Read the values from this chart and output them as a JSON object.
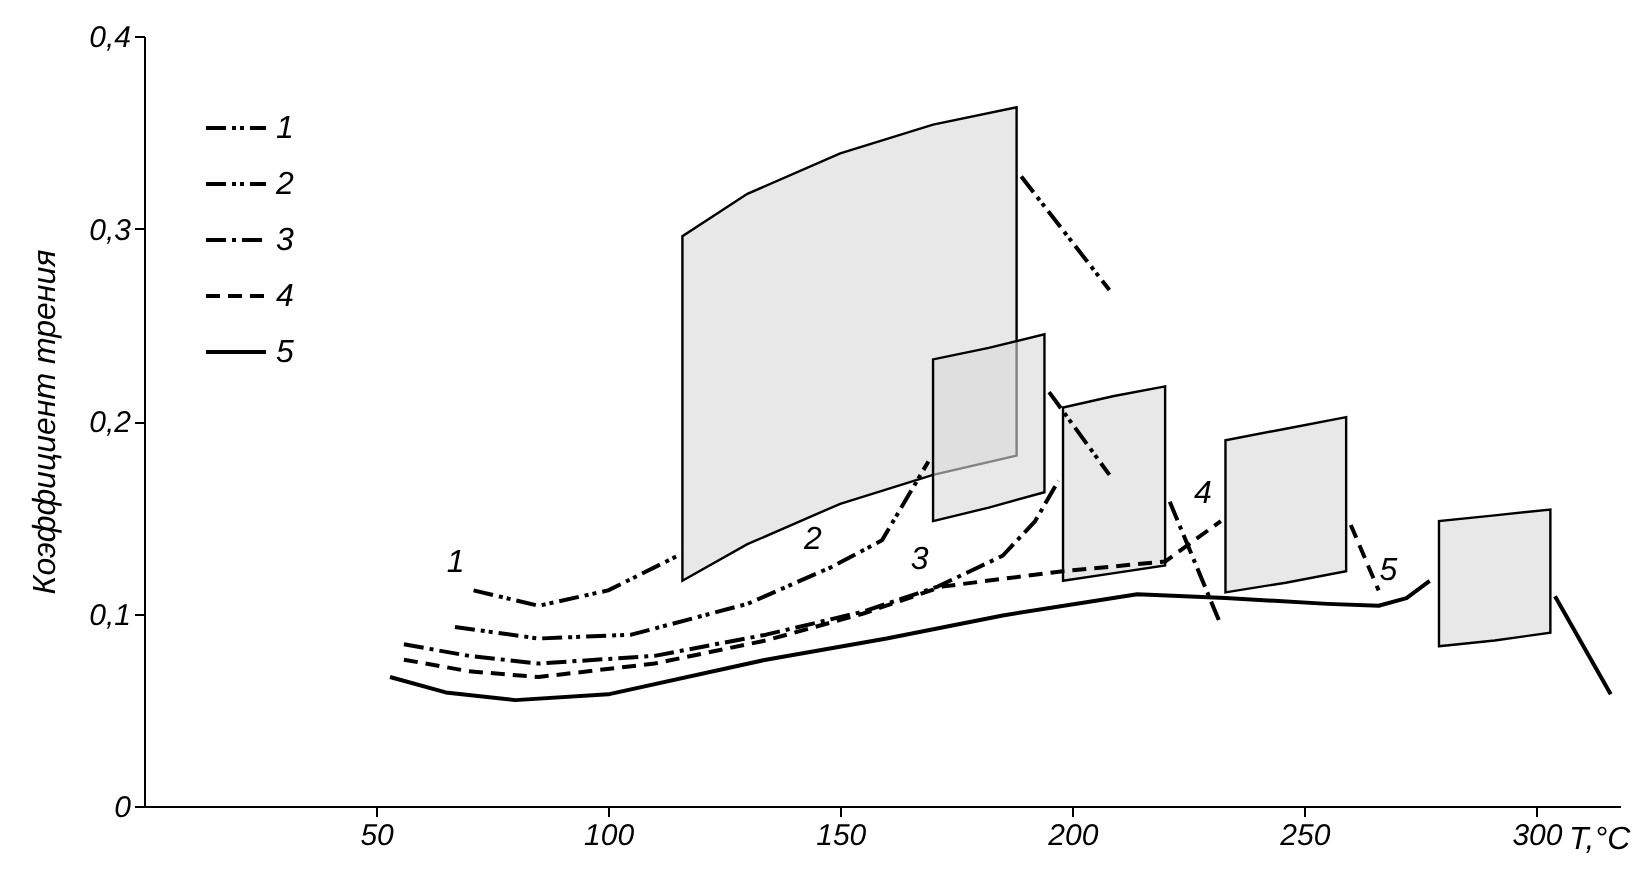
{
  "chart_data": {
    "type": "line",
    "xlabel": "T,°C",
    "ylabel": "Коэффициент трения",
    "xlim": [
      0,
      318
    ],
    "ylim": [
      0,
      0.4
    ],
    "xticks": [
      50,
      100,
      150,
      200,
      250,
      300
    ],
    "yticks": [
      {
        "value": 0,
        "label": "0"
      },
      {
        "value": 0.1,
        "label": "0,1"
      },
      {
        "value": 0.2,
        "label": "0,2"
      },
      {
        "value": 0.3,
        "label": "0,3"
      },
      {
        "value": 0.4,
        "label": "0,4"
      }
    ],
    "grid": false,
    "legend": "top left",
    "marker": "none",
    "series": [
      {
        "name": "1",
        "color": "#000000",
        "line_style": "dashdotdot",
        "x": [
          71,
          85,
          100,
          115,
          116,
          130,
          150,
          170,
          188,
          189,
          208
        ],
        "values": [
          0.112,
          0.104,
          0.112,
          0.13,
          null,
          null,
          null,
          null,
          null,
          0.327,
          0.268
        ],
        "lower": [
          null,
          null,
          null,
          null,
          0.117,
          0.136,
          0.157,
          0.172,
          0.182,
          null,
          null
        ],
        "upper": [
          null,
          null,
          null,
          null,
          0.296,
          0.318,
          0.339,
          0.354,
          0.363,
          null,
          null
        ]
      },
      {
        "name": "2",
        "color": "#000000",
        "line_style": "dashdotdot",
        "x": [
          67,
          85,
          105,
          130,
          148,
          159,
          169,
          170,
          182,
          194,
          195,
          208
        ],
        "values": [
          0.093,
          0.087,
          0.089,
          0.105,
          0.124,
          0.138,
          0.179,
          null,
          null,
          null,
          0.215,
          0.172
        ],
        "lower": [
          null,
          null,
          null,
          null,
          null,
          null,
          null,
          0.148,
          0.155,
          0.163,
          null,
          null
        ],
        "upper": [
          null,
          null,
          null,
          null,
          null,
          null,
          null,
          0.232,
          0.238,
          0.245,
          null,
          null
        ]
      },
      {
        "name": "3",
        "color": "#000000",
        "line_style": "dashdot",
        "x": [
          56,
          70,
          85,
          110,
          134,
          155,
          171,
          185,
          192,
          197,
          198,
          209,
          220,
          221,
          232
        ],
        "values": [
          0.084,
          0.078,
          0.074,
          0.078,
          0.089,
          0.101,
          0.114,
          0.13,
          0.148,
          0.169,
          null,
          null,
          null,
          0.158,
          0.094
        ],
        "lower": [
          null,
          null,
          null,
          null,
          null,
          null,
          null,
          null,
          null,
          null,
          0.117,
          0.121,
          0.125,
          null,
          null
        ],
        "upper": [
          null,
          null,
          null,
          null,
          null,
          null,
          null,
          null,
          null,
          null,
          0.207,
          0.213,
          0.218,
          null,
          null
        ]
      },
      {
        "name": "4",
        "color": "#000000",
        "line_style": "dashed",
        "x": [
          56,
          70,
          85,
          110,
          134,
          155,
          172,
          198,
          220,
          232,
          233,
          246,
          259,
          260,
          266
        ],
        "values": [
          0.076,
          0.07,
          0.067,
          0.074,
          0.086,
          0.1,
          0.114,
          0.122,
          0.127,
          0.148,
          null,
          null,
          null,
          0.146,
          0.112
        ],
        "lower": [
          null,
          null,
          null,
          null,
          null,
          null,
          null,
          null,
          null,
          null,
          0.111,
          0.116,
          0.122,
          null,
          null
        ],
        "upper": [
          null,
          null,
          null,
          null,
          null,
          null,
          null,
          null,
          null,
          null,
          0.19,
          0.196,
          0.202,
          null,
          null
        ]
      },
      {
        "name": "5",
        "color": "#000000",
        "line_style": "solid",
        "x": [
          53,
          65,
          80,
          100,
          134,
          160,
          185,
          214,
          233,
          255,
          266,
          272,
          277,
          279,
          291,
          303,
          304,
          316
        ],
        "values": [
          0.067,
          0.059,
          0.055,
          0.058,
          0.076,
          0.087,
          0.099,
          0.11,
          0.108,
          0.105,
          0.104,
          0.108,
          0.117,
          null,
          null,
          null,
          0.109,
          0.058
        ],
        "lower": [
          null,
          null,
          null,
          null,
          null,
          null,
          null,
          null,
          null,
          null,
          null,
          null,
          null,
          0.083,
          0.086,
          0.09,
          null,
          null
        ],
        "upper": [
          null,
          null,
          null,
          null,
          null,
          null,
          null,
          null,
          null,
          null,
          null,
          null,
          null,
          0.148,
          0.151,
          0.154,
          null,
          null
        ]
      }
    ],
    "annotations": [
      {
        "text": "1",
        "x": 71,
        "y": 0.112
      },
      {
        "text": "2",
        "x": 148,
        "y": 0.124
      },
      {
        "text": "3",
        "x": 171,
        "y": 0.114
      },
      {
        "text": "4",
        "x": 232,
        "y": 0.148
      },
      {
        "text": "5",
        "x": 272,
        "y": 0.108
      }
    ]
  }
}
